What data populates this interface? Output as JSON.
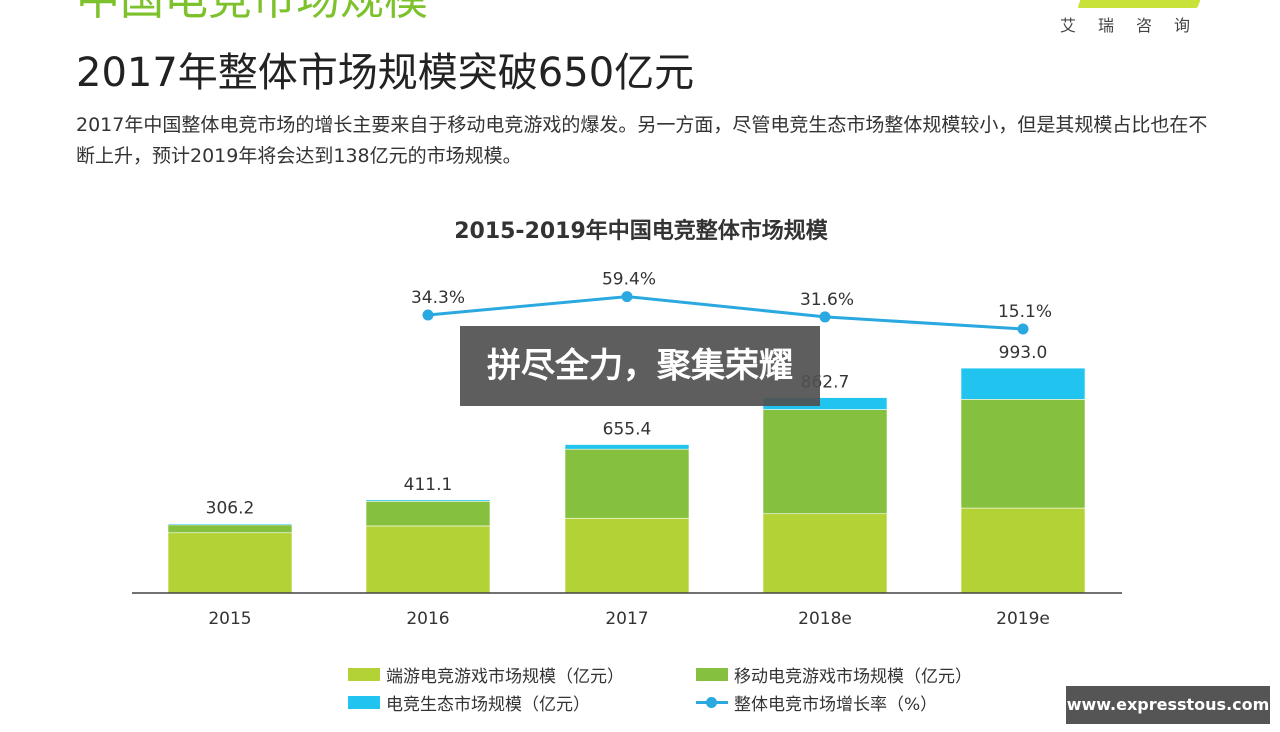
{
  "header": {
    "section_title": "中国电竞市场规模",
    "brand": "艾瑞咨询",
    "headline": "2017年整体市场规模突破650亿元",
    "description": "2017年中国整体电竞市场的增长主要来自于移动电竞游戏的爆发。另一方面，尽管电竞生态市场整体规模较小，但是其规模占比也在不断上升，预计2019年将会达到138亿元的市场规模。"
  },
  "overlay": {
    "banner": "拼尽全力，聚集荣耀"
  },
  "watermark": "www.expresstous.com",
  "colors": {
    "pc": "#b3d235",
    "mobile": "#86c03f",
    "ecosystem": "#20c4ef",
    "growth": "#2aa8e0"
  },
  "chart_data": {
    "type": "bar",
    "stacked": true,
    "title": "2015-2019年中国电竞整体市场规模",
    "categories": [
      "2015",
      "2016",
      "2017",
      "2018e",
      "2019e"
    ],
    "series": [
      {
        "name": "端游电竞游戏市场规模（亿元）",
        "values": [
          266.0,
          296.0,
          330.0,
          350.0,
          375.0
        ]
      },
      {
        "name": "移动电竞游戏市场规模（亿元）",
        "values": [
          35.0,
          109.0,
          305.0,
          460.0,
          480.0
        ]
      },
      {
        "name": "电竞生态市场规模（亿元）",
        "values": [
          5.2,
          6.1,
          20.4,
          52.7,
          138.0
        ]
      }
    ],
    "totals": [
      306.2,
      411.1,
      655.4,
      862.7,
      993.0
    ],
    "total_labels": [
      "306.2",
      "411.1",
      "655.4",
      "862.7",
      "993.0"
    ],
    "growth": {
      "name": "整体电竞市场增长率（%）",
      "categories": [
        "2016",
        "2017",
        "2018e",
        "2019e"
      ],
      "values": [
        34.3,
        59.4,
        31.6,
        15.1
      ],
      "labels": [
        "34.3%",
        "59.4%",
        "31.6%",
        "15.1%"
      ]
    },
    "legend_position": "bottom"
  }
}
